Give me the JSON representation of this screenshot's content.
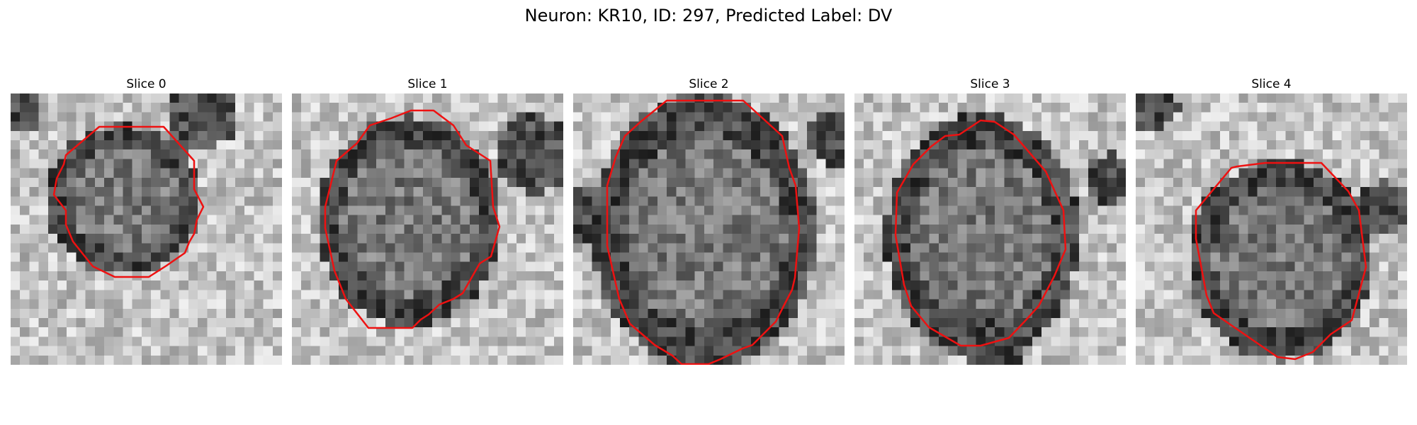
{
  "figure": {
    "title": "Neuron: KR10, ID: 297, Predicted Label: DV"
  },
  "slices": [
    {
      "label": "Slice 0"
    },
    {
      "label": "Slice 1"
    },
    {
      "label": "Slice 2"
    },
    {
      "label": "Slice 3"
    },
    {
      "label": "Slice 4"
    }
  ],
  "colors": {
    "contour": "#ee1111",
    "background": "#ffffff"
  }
}
